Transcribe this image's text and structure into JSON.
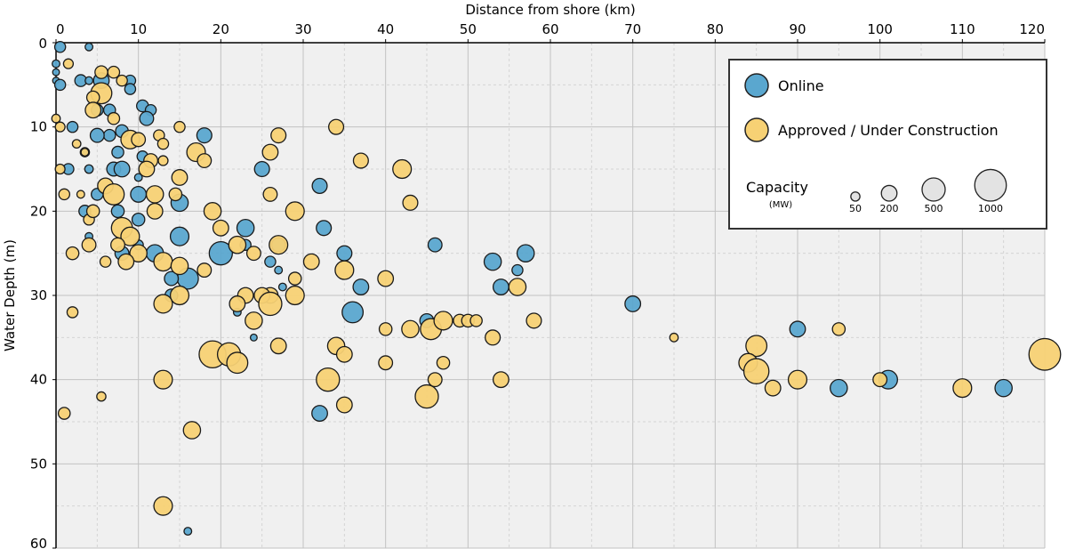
{
  "chart_data": {
    "type": "scatter",
    "subtype": "bubble",
    "xlabel": "Distance from shore (km)",
    "ylabel": "Water Depth (m)",
    "xlim": [
      0,
      120
    ],
    "ylim": [
      0,
      60
    ],
    "x_ticks": [
      "0",
      "10",
      "20",
      "30",
      "40",
      "50",
      "60",
      "70",
      "80",
      "90",
      "100",
      "110",
      "120"
    ],
    "y_ticks": [
      "0",
      "10",
      "20",
      "30",
      "40",
      "50",
      "60"
    ],
    "x_axis_position": "top",
    "y_axis_inverted": true,
    "grid": true,
    "colors": {
      "online": "#5aa7cf",
      "approved": "#f7d174",
      "size_ref": "#e3e3e3",
      "plot_bg": "#f0f0f0",
      "grid": "#c8c8c8"
    },
    "legend": {
      "placement": "top-right",
      "online_label": "Online",
      "approved_label": "Approved / Under Construction",
      "capacity_title": "Capacity",
      "capacity_unit": "(MW)",
      "sizes": [
        {
          "label": "50",
          "mw": 50
        },
        {
          "label": "200",
          "mw": 200
        },
        {
          "label": "500",
          "mw": 500
        },
        {
          "label": "1000",
          "mw": 1000
        }
      ]
    },
    "series": [
      {
        "name": "Online",
        "points": [
          {
            "x": 0.5,
            "y": 0.5,
            "mw": 80
          },
          {
            "x": 4,
            "y": 0.5,
            "mw": 30
          },
          {
            "x": 0,
            "y": 2.5,
            "mw": 30
          },
          {
            "x": 0,
            "y": 3.5,
            "mw": 20
          },
          {
            "x": 0,
            "y": 4.5,
            "mw": 20
          },
          {
            "x": 0.5,
            "y": 5,
            "mw": 80
          },
          {
            "x": 3,
            "y": 4.5,
            "mw": 100
          },
          {
            "x": 4,
            "y": 4.5,
            "mw": 30
          },
          {
            "x": 5.5,
            "y": 4.5,
            "mw": 200
          },
          {
            "x": 9,
            "y": 4.5,
            "mw": 80
          },
          {
            "x": 9,
            "y": 5.5,
            "mw": 80
          },
          {
            "x": 5,
            "y": 8,
            "mw": 100
          },
          {
            "x": 6.5,
            "y": 8,
            "mw": 100
          },
          {
            "x": 10.5,
            "y": 7.5,
            "mw": 100
          },
          {
            "x": 11.5,
            "y": 8,
            "mw": 80
          },
          {
            "x": 11,
            "y": 9,
            "mw": 150
          },
          {
            "x": 2,
            "y": 10,
            "mw": 80
          },
          {
            "x": 8,
            "y": 10.5,
            "mw": 120
          },
          {
            "x": 6.5,
            "y": 11,
            "mw": 100
          },
          {
            "x": 5,
            "y": 11,
            "mw": 150
          },
          {
            "x": 3.5,
            "y": 13,
            "mw": 50
          },
          {
            "x": 1.5,
            "y": 15,
            "mw": 80
          },
          {
            "x": 7,
            "y": 15,
            "mw": 150
          },
          {
            "x": 8,
            "y": 15,
            "mw": 200
          },
          {
            "x": 7.5,
            "y": 13,
            "mw": 100
          },
          {
            "x": 10.5,
            "y": 13.5,
            "mw": 80
          },
          {
            "x": 10,
            "y": 16,
            "mw": 30
          },
          {
            "x": 10,
            "y": 18,
            "mw": 200
          },
          {
            "x": 5,
            "y": 18,
            "mw": 100
          },
          {
            "x": 3.5,
            "y": 20,
            "mw": 100
          },
          {
            "x": 7.5,
            "y": 20,
            "mw": 120
          },
          {
            "x": 10,
            "y": 21,
            "mw": 120
          },
          {
            "x": 15,
            "y": 19,
            "mw": 250
          },
          {
            "x": 15,
            "y": 23,
            "mw": 300
          },
          {
            "x": 12,
            "y": 25,
            "mw": 250
          },
          {
            "x": 8,
            "y": 25,
            "mw": 150
          },
          {
            "x": 16,
            "y": 28,
            "mw": 400
          },
          {
            "x": 14,
            "y": 28,
            "mw": 150
          },
          {
            "x": 14,
            "y": 30,
            "mw": 120
          },
          {
            "x": 18,
            "y": 11,
            "mw": 180
          },
          {
            "x": 25,
            "y": 15,
            "mw": 180
          },
          {
            "x": 23,
            "y": 22,
            "mw": 250
          },
          {
            "x": 20,
            "y": 25,
            "mw": 500
          },
          {
            "x": 23,
            "y": 24,
            "mw": 80
          },
          {
            "x": 27,
            "y": 24,
            "mw": 150
          },
          {
            "x": 26,
            "y": 26,
            "mw": 80
          },
          {
            "x": 27,
            "y": 27,
            "mw": 30
          },
          {
            "x": 32,
            "y": 17,
            "mw": 180
          },
          {
            "x": 32.5,
            "y": 22,
            "mw": 180
          },
          {
            "x": 35,
            "y": 25,
            "mw": 180
          },
          {
            "x": 37,
            "y": 29,
            "mw": 200
          },
          {
            "x": 36,
            "y": 32,
            "mw": 400
          },
          {
            "x": 32,
            "y": 44,
            "mw": 200
          },
          {
            "x": 46,
            "y": 24,
            "mw": 150
          },
          {
            "x": 45,
            "y": 33,
            "mw": 150
          },
          {
            "x": 53,
            "y": 26,
            "mw": 250
          },
          {
            "x": 56,
            "y": 27,
            "mw": 80
          },
          {
            "x": 54,
            "y": 29,
            "mw": 200
          },
          {
            "x": 57,
            "y": 25,
            "mw": 250
          },
          {
            "x": 70,
            "y": 31,
            "mw": 200
          },
          {
            "x": 90,
            "y": 34,
            "mw": 200
          },
          {
            "x": 95,
            "y": 41,
            "mw": 250
          },
          {
            "x": 101,
            "y": 40,
            "mw": 300
          },
          {
            "x": 115,
            "y": 41,
            "mw": 250
          },
          {
            "x": 16,
            "y": 58,
            "mw": 30
          },
          {
            "x": 24,
            "y": 35,
            "mw": 20
          },
          {
            "x": 4,
            "y": 23,
            "mw": 30
          },
          {
            "x": 22,
            "y": 32,
            "mw": 30
          },
          {
            "x": 27.5,
            "y": 29,
            "mw": 30
          },
          {
            "x": 4,
            "y": 15,
            "mw": 40
          },
          {
            "x": 10,
            "y": 24,
            "mw": 60
          }
        ]
      },
      {
        "name": "Approved / Under Construction",
        "points": [
          {
            "x": 1.5,
            "y": 2.5,
            "mw": 60
          },
          {
            "x": 5.5,
            "y": 3.5,
            "mw": 120
          },
          {
            "x": 7,
            "y": 3.5,
            "mw": 100
          },
          {
            "x": 8,
            "y": 4.5,
            "mw": 80
          },
          {
            "x": 5.5,
            "y": 6,
            "mw": 400
          },
          {
            "x": 4.5,
            "y": 6.5,
            "mw": 120
          },
          {
            "x": 4.5,
            "y": 8,
            "mw": 200
          },
          {
            "x": 7,
            "y": 9,
            "mw": 100
          },
          {
            "x": 0,
            "y": 9,
            "mw": 40
          },
          {
            "x": 0.5,
            "y": 10,
            "mw": 60
          },
          {
            "x": 9,
            "y": 11.5,
            "mw": 300
          },
          {
            "x": 10,
            "y": 11.5,
            "mw": 150
          },
          {
            "x": 12.5,
            "y": 11,
            "mw": 80
          },
          {
            "x": 13,
            "y": 12,
            "mw": 80
          },
          {
            "x": 15,
            "y": 10,
            "mw": 80
          },
          {
            "x": 11.5,
            "y": 14,
            "mw": 150
          },
          {
            "x": 13,
            "y": 14,
            "mw": 60
          },
          {
            "x": 17,
            "y": 13,
            "mw": 300
          },
          {
            "x": 18,
            "y": 14,
            "mw": 150
          },
          {
            "x": 2.5,
            "y": 12,
            "mw": 40
          },
          {
            "x": 3.5,
            "y": 13,
            "mw": 30
          },
          {
            "x": 0.5,
            "y": 15,
            "mw": 60
          },
          {
            "x": 6,
            "y": 17,
            "mw": 200
          },
          {
            "x": 7,
            "y": 18,
            "mw": 400
          },
          {
            "x": 11,
            "y": 15,
            "mw": 200
          },
          {
            "x": 12,
            "y": 18,
            "mw": 250
          },
          {
            "x": 15,
            "y": 16,
            "mw": 200
          },
          {
            "x": 14.5,
            "y": 18,
            "mw": 120
          },
          {
            "x": 1,
            "y": 18,
            "mw": 80
          },
          {
            "x": 3,
            "y": 18,
            "mw": 30
          },
          {
            "x": 4,
            "y": 21,
            "mw": 80
          },
          {
            "x": 4.5,
            "y": 20,
            "mw": 120
          },
          {
            "x": 8,
            "y": 22,
            "mw": 400
          },
          {
            "x": 9,
            "y": 23,
            "mw": 300
          },
          {
            "x": 12,
            "y": 20,
            "mw": 200
          },
          {
            "x": 7.5,
            "y": 24,
            "mw": 150
          },
          {
            "x": 4,
            "y": 24,
            "mw": 150
          },
          {
            "x": 2,
            "y": 25,
            "mw": 120
          },
          {
            "x": 6,
            "y": 26,
            "mw": 80
          },
          {
            "x": 10,
            "y": 25,
            "mw": 250
          },
          {
            "x": 8.5,
            "y": 26,
            "mw": 200
          },
          {
            "x": 13,
            "y": 26,
            "mw": 300
          },
          {
            "x": 15,
            "y": 26.5,
            "mw": 250
          },
          {
            "x": 18,
            "y": 27,
            "mw": 150
          },
          {
            "x": 19,
            "y": 20,
            "mw": 250
          },
          {
            "x": 20,
            "y": 22,
            "mw": 200
          },
          {
            "x": 22,
            "y": 24,
            "mw": 250
          },
          {
            "x": 24,
            "y": 25,
            "mw": 150
          },
          {
            "x": 26,
            "y": 13,
            "mw": 200
          },
          {
            "x": 27,
            "y": 11,
            "mw": 180
          },
          {
            "x": 26,
            "y": 18,
            "mw": 150
          },
          {
            "x": 29,
            "y": 20,
            "mw": 300
          },
          {
            "x": 27,
            "y": 24,
            "mw": 300
          },
          {
            "x": 29,
            "y": 28,
            "mw": 120
          },
          {
            "x": 29,
            "y": 30,
            "mw": 300
          },
          {
            "x": 26,
            "y": 30,
            "mw": 200
          },
          {
            "x": 25,
            "y": 30,
            "mw": 200
          },
          {
            "x": 23,
            "y": 30,
            "mw": 200
          },
          {
            "x": 24,
            "y": 33,
            "mw": 250
          },
          {
            "x": 26,
            "y": 31,
            "mw": 500
          },
          {
            "x": 22,
            "y": 31,
            "mw": 200
          },
          {
            "x": 15,
            "y": 30,
            "mw": 300
          },
          {
            "x": 13,
            "y": 31,
            "mw": 300
          },
          {
            "x": 19,
            "y": 37,
            "mw": 700
          },
          {
            "x": 21,
            "y": 37,
            "mw": 500
          },
          {
            "x": 22,
            "y": 38,
            "mw": 400
          },
          {
            "x": 27,
            "y": 36,
            "mw": 200
          },
          {
            "x": 13,
            "y": 40,
            "mw": 300
          },
          {
            "x": 34,
            "y": 10,
            "mw": 180
          },
          {
            "x": 37,
            "y": 14,
            "mw": 180
          },
          {
            "x": 42,
            "y": 15,
            "mw": 300
          },
          {
            "x": 43,
            "y": 19,
            "mw": 180
          },
          {
            "x": 31,
            "y": 26,
            "mw": 200
          },
          {
            "x": 35,
            "y": 27,
            "mw": 300
          },
          {
            "x": 40,
            "y": 28,
            "mw": 200
          },
          {
            "x": 34,
            "y": 36,
            "mw": 250
          },
          {
            "x": 35,
            "y": 37,
            "mw": 200
          },
          {
            "x": 40,
            "y": 38,
            "mw": 150
          },
          {
            "x": 40,
            "y": 34,
            "mw": 120
          },
          {
            "x": 43,
            "y": 34,
            "mw": 250
          },
          {
            "x": 45.5,
            "y": 34,
            "mw": 400
          },
          {
            "x": 47,
            "y": 33,
            "mw": 300
          },
          {
            "x": 49,
            "y": 33,
            "mw": 120
          },
          {
            "x": 50,
            "y": 33,
            "mw": 120
          },
          {
            "x": 51,
            "y": 33,
            "mw": 100
          },
          {
            "x": 53,
            "y": 35,
            "mw": 180
          },
          {
            "x": 56,
            "y": 29,
            "mw": 250
          },
          {
            "x": 58,
            "y": 33,
            "mw": 180
          },
          {
            "x": 33,
            "y": 40,
            "mw": 500
          },
          {
            "x": 35,
            "y": 43,
            "mw": 200
          },
          {
            "x": 45,
            "y": 42,
            "mw": 500
          },
          {
            "x": 46,
            "y": 40,
            "mw": 150
          },
          {
            "x": 47,
            "y": 38,
            "mw": 120
          },
          {
            "x": 54,
            "y": 40,
            "mw": 200
          },
          {
            "x": 16.5,
            "y": 46,
            "mw": 250
          },
          {
            "x": 13,
            "y": 55,
            "mw": 300
          },
          {
            "x": 1,
            "y": 44,
            "mw": 100
          },
          {
            "x": 2,
            "y": 32,
            "mw": 80
          },
          {
            "x": 5.5,
            "y": 42,
            "mw": 50
          },
          {
            "x": 75,
            "y": 35,
            "mw": 40
          },
          {
            "x": 85,
            "y": 36,
            "mw": 400
          },
          {
            "x": 84,
            "y": 38,
            "mw": 300
          },
          {
            "x": 85,
            "y": 39,
            "mw": 600
          },
          {
            "x": 87,
            "y": 41,
            "mw": 200
          },
          {
            "x": 90,
            "y": 40,
            "mw": 300
          },
          {
            "x": 95,
            "y": 34,
            "mw": 120
          },
          {
            "x": 100,
            "y": 40,
            "mw": 150
          },
          {
            "x": 110,
            "y": 41,
            "mw": 300
          },
          {
            "x": 120,
            "y": 37,
            "mw": 1000
          }
        ]
      }
    ]
  }
}
